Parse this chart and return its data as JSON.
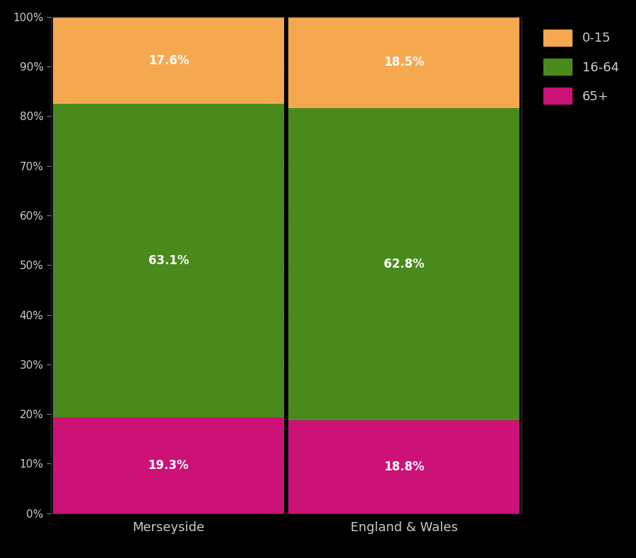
{
  "categories": [
    "Merseyside",
    "England & Wales"
  ],
  "age_groups": [
    "65+",
    "16-64",
    "0-15"
  ],
  "values": {
    "Merseyside": [
      19.3,
      63.1,
      17.6
    ],
    "England & Wales": [
      18.8,
      62.8,
      18.5
    ]
  },
  "colors": [
    "#cc1177",
    "#4a8a1c",
    "#f5a84e"
  ],
  "labels": [
    "65+",
    "16-64",
    "0-15"
  ],
  "background_color": "#000000",
  "text_color": "#cccccc",
  "bar_width": 0.98,
  "ylim": [
    0,
    100
  ],
  "yticks": [
    0,
    10,
    20,
    30,
    40,
    50,
    60,
    70,
    80,
    90,
    100
  ],
  "ytick_labels": [
    "0%",
    "10%",
    "20%",
    "30%",
    "40%",
    "50%",
    "60%",
    "70%",
    "80%",
    "90%",
    "100%"
  ],
  "label_positions": {
    "Merseyside": {
      "0-15": 91.15,
      "16-64": 50.75,
      "65+": 9.65
    },
    "England & Wales": {
      "0-15": 90.6,
      "16-64": 50.4,
      "65+": 9.4
    }
  }
}
